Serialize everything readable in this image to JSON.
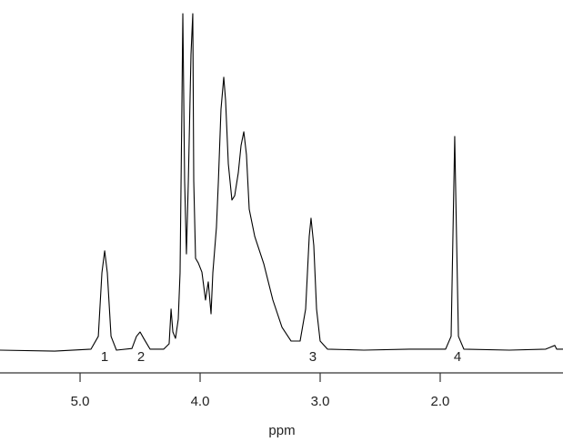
{
  "chart_data": {
    "type": "line",
    "x_label": "ppm",
    "xlim": [
      5.667,
      0.977
    ],
    "ylim": [
      0,
      100
    ],
    "xticks": [
      {
        "value": 5,
        "label": "5.0"
      },
      {
        "value": 4,
        "label": "4.0"
      },
      {
        "value": 3,
        "label": "3.0"
      },
      {
        "value": 2,
        "label": "2.0"
      }
    ],
    "series": [
      {
        "color": "#000000",
        "x": [
          5.667,
          5.212,
          4.909,
          4.848,
          4.818,
          4.795,
          4.773,
          4.742,
          4.697,
          4.568,
          4.53,
          4.5,
          4.47,
          4.417,
          4.303,
          4.258,
          4.242,
          4.227,
          4.205,
          4.182,
          4.167,
          4.152,
          4.144,
          4.129,
          4.114,
          4.098,
          4.076,
          4.061,
          4.053,
          4.038,
          4.015,
          3.985,
          3.955,
          3.932,
          3.909,
          3.894,
          3.864,
          3.848,
          3.826,
          3.803,
          3.788,
          3.765,
          3.735,
          3.712,
          3.682,
          3.659,
          3.636,
          3.614,
          3.591,
          3.545,
          3.47,
          3.394,
          3.318,
          3.242,
          3.167,
          3.121,
          3.091,
          3.076,
          3.053,
          3.03,
          3.0,
          2.939,
          2.636,
          2.258,
          1.955,
          1.909,
          1.894,
          1.879,
          1.864,
          1.848,
          1.803,
          1.424,
          1.121,
          1.045,
          1.03,
          0.977
        ],
        "values": [
          0,
          -0.3,
          0.3,
          4.1,
          23.0,
          29.5,
          23.0,
          4.1,
          0,
          0.5,
          4.1,
          5.4,
          3.5,
          0.3,
          0.3,
          1.9,
          12.2,
          5.4,
          3.5,
          9.2,
          23.0,
          71.6,
          100,
          50.3,
          28.6,
          50.3,
          87.8,
          100,
          50.3,
          27.3,
          25.9,
          23.2,
          14.9,
          20.3,
          10.8,
          23.0,
          36.5,
          50.0,
          71.6,
          81.1,
          74.3,
          55.4,
          44.6,
          45.9,
          52.7,
          60.8,
          64.9,
          58.1,
          41.9,
          33.8,
          25.7,
          14.9,
          6.8,
          2.7,
          2.7,
          12.2,
          33.8,
          39.2,
          31.1,
          12.2,
          2.7,
          0.3,
          0,
          0.3,
          0.3,
          4.1,
          33.8,
          63.5,
          33.8,
          4.1,
          0.3,
          0,
          0.3,
          1.4,
          0.3,
          0.3
        ]
      }
    ],
    "annotations": [
      {
        "text": "1",
        "x": 4.795
      },
      {
        "text": "2",
        "x": 4.492
      },
      {
        "text": "3",
        "x": 3.061
      },
      {
        "text": "4",
        "x": 1.856
      }
    ]
  }
}
